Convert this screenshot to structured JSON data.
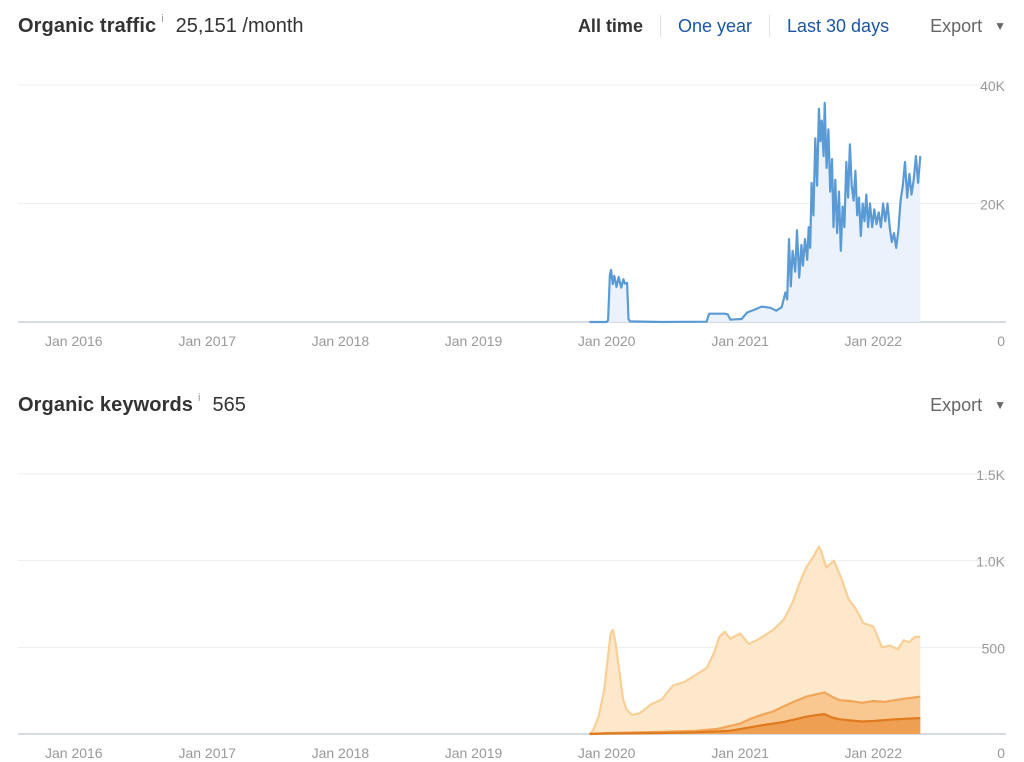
{
  "traffic": {
    "title": "Organic traffic",
    "info_icon": "i",
    "value": "25,151 /month",
    "ranges": [
      "All time",
      "One year",
      "Last 30 days"
    ],
    "export_label": "Export"
  },
  "keywords": {
    "title": "Organic keywords",
    "info_icon": "i",
    "value": "565",
    "export_label": "Export"
  },
  "chart_data": [
    {
      "type": "line",
      "xlabel": "",
      "ylabel": "",
      "x_ticks": [
        "Jan 2016",
        "Jan 2017",
        "Jan 2018",
        "Jan 2019",
        "Jan 2020",
        "Jan 2021",
        "Jan 2022"
      ],
      "y_ticks": [
        "0",
        "20K",
        "40K"
      ],
      "ylim": [
        0,
        40000
      ],
      "xlim": [
        "2015-08-01",
        "2022-12-31"
      ],
      "grid": true,
      "color": "#5b9bd5",
      "fill_color": "#e9f1fb",
      "series": [
        {
          "points": [
            [
              "2019-11-15",
              0
            ],
            [
              "2020-01-01",
              0
            ],
            [
              "2020-01-05",
              300
            ],
            [
              "2020-01-10",
              8000
            ],
            [
              "2020-01-13",
              8800
            ],
            [
              "2020-01-18",
              6400
            ],
            [
              "2020-01-22",
              7800
            ],
            [
              "2020-01-28",
              5900
            ],
            [
              "2020-02-03",
              7600
            ],
            [
              "2020-02-10",
              5800
            ],
            [
              "2020-02-16",
              7200
            ],
            [
              "2020-02-20",
              6500
            ],
            [
              "2020-02-26",
              6600
            ],
            [
              "2020-03-01",
              500
            ],
            [
              "2020-03-05",
              100
            ],
            [
              "2020-06-01",
              0
            ],
            [
              "2020-10-01",
              50
            ],
            [
              "2020-10-08",
              1400
            ],
            [
              "2020-11-20",
              1400
            ],
            [
              "2020-11-28",
              1300
            ],
            [
              "2020-12-05",
              400
            ],
            [
              "2020-12-20",
              450
            ],
            [
              "2021-01-05",
              500
            ],
            [
              "2021-01-20",
              1600
            ],
            [
              "2021-02-10",
              2100
            ],
            [
              "2021-03-01",
              2600
            ],
            [
              "2021-03-25",
              2400
            ],
            [
              "2021-04-10",
              1900
            ],
            [
              "2021-04-25",
              2500
            ],
            [
              "2021-05-05",
              5000
            ],
            [
              "2021-05-10",
              3800
            ],
            [
              "2021-05-15",
              14000
            ],
            [
              "2021-05-20",
              6000
            ],
            [
              "2021-05-25",
              12000
            ],
            [
              "2021-06-01",
              8500
            ],
            [
              "2021-06-06",
              15500
            ],
            [
              "2021-06-12",
              7500
            ],
            [
              "2021-06-18",
              13000
            ],
            [
              "2021-06-22",
              9500
            ],
            [
              "2021-06-28",
              14000
            ],
            [
              "2021-07-04",
              10500
            ],
            [
              "2021-07-08",
              16000
            ],
            [
              "2021-07-12",
              12500
            ],
            [
              "2021-07-16",
              23500
            ],
            [
              "2021-07-21",
              18000
            ],
            [
              "2021-07-26",
              31000
            ],
            [
              "2021-07-31",
              23000
            ],
            [
              "2021-08-05",
              36000
            ],
            [
              "2021-08-09",
              30500
            ],
            [
              "2021-08-13",
              34000
            ],
            [
              "2021-08-18",
              28000
            ],
            [
              "2021-08-21",
              37000
            ],
            [
              "2021-08-26",
              26000
            ],
            [
              "2021-08-31",
              32500
            ],
            [
              "2021-09-05",
              22000
            ],
            [
              "2021-09-10",
              27500
            ],
            [
              "2021-09-14",
              16000
            ],
            [
              "2021-09-19",
              24000
            ],
            [
              "2021-09-24",
              15000
            ],
            [
              "2021-09-29",
              22000
            ],
            [
              "2021-10-04",
              12000
            ],
            [
              "2021-10-09",
              19500
            ],
            [
              "2021-10-14",
              16000
            ],
            [
              "2021-10-19",
              27000
            ],
            [
              "2021-10-24",
              21000
            ],
            [
              "2021-10-29",
              30000
            ],
            [
              "2021-11-03",
              23000
            ],
            [
              "2021-11-08",
              20500
            ],
            [
              "2021-11-13",
              25500
            ],
            [
              "2021-11-18",
              18000
            ],
            [
              "2021-11-23",
              21000
            ],
            [
              "2021-11-28",
              14500
            ],
            [
              "2021-12-03",
              20000
            ],
            [
              "2021-12-08",
              17000
            ],
            [
              "2021-12-13",
              21500
            ],
            [
              "2021-12-18",
              16000
            ],
            [
              "2021-12-23",
              20000
            ],
            [
              "2021-12-29",
              16000
            ],
            [
              "2022-01-04",
              19000
            ],
            [
              "2022-01-10",
              16500
            ],
            [
              "2022-01-16",
              18500
            ],
            [
              "2022-01-22",
              16000
            ],
            [
              "2022-01-28",
              20000
            ],
            [
              "2022-02-03",
              17000
            ],
            [
              "2022-02-09",
              20000
            ],
            [
              "2022-02-15",
              16000
            ],
            [
              "2022-02-21",
              13500
            ],
            [
              "2022-02-27",
              15000
            ],
            [
              "2022-03-05",
              12500
            ],
            [
              "2022-03-11",
              15500
            ],
            [
              "2022-03-17",
              20500
            ],
            [
              "2022-03-23",
              23000
            ],
            [
              "2022-03-29",
              27000
            ],
            [
              "2022-04-04",
              21000
            ],
            [
              "2022-04-10",
              25000
            ],
            [
              "2022-04-16",
              21500
            ],
            [
              "2022-04-22",
              24000
            ],
            [
              "2022-04-28",
              28000
            ],
            [
              "2022-05-04",
              23500
            ],
            [
              "2022-05-10",
              28000
            ]
          ]
        }
      ]
    },
    {
      "type": "area",
      "xlabel": "",
      "ylabel": "",
      "x_ticks": [
        "Jan 2016",
        "Jan 2017",
        "Jan 2018",
        "Jan 2019",
        "Jan 2020",
        "Jan 2021",
        "Jan 2022"
      ],
      "y_ticks": [
        "0",
        "500",
        "1.0K",
        "1.5K"
      ],
      "ylim": [
        0,
        1500
      ],
      "xlim": [
        "2015-08-01",
        "2022-12-31"
      ],
      "grid": true,
      "stacked": false,
      "series": [
        {
          "color": "#f9cf95",
          "fill": "#fde6c6",
          "points": [
            [
              "2019-11-15",
              0
            ],
            [
              "2019-11-25",
              20
            ],
            [
              "2019-12-10",
              100
            ],
            [
              "2019-12-25",
              250
            ],
            [
              "2020-01-05",
              450
            ],
            [
              "2020-01-12",
              580
            ],
            [
              "2020-01-18",
              600
            ],
            [
              "2020-01-25",
              530
            ],
            [
              "2020-02-05",
              360
            ],
            [
              "2020-02-15",
              200
            ],
            [
              "2020-02-25",
              140
            ],
            [
              "2020-03-10",
              110
            ],
            [
              "2020-04-01",
              120
            ],
            [
              "2020-05-01",
              170
            ],
            [
              "2020-06-01",
              200
            ],
            [
              "2020-06-15",
              240
            ],
            [
              "2020-07-01",
              280
            ],
            [
              "2020-08-01",
              300
            ],
            [
              "2020-09-01",
              340
            ],
            [
              "2020-10-01",
              380
            ],
            [
              "2020-10-20",
              460
            ],
            [
              "2020-11-05",
              560
            ],
            [
              "2020-11-20",
              590
            ],
            [
              "2020-12-05",
              550
            ],
            [
              "2021-01-01",
              580
            ],
            [
              "2021-01-25",
              520
            ],
            [
              "2021-02-15",
              540
            ],
            [
              "2021-03-10",
              570
            ],
            [
              "2021-04-01",
              600
            ],
            [
              "2021-05-01",
              660
            ],
            [
              "2021-05-25",
              760
            ],
            [
              "2021-06-15",
              880
            ],
            [
              "2021-07-01",
              960
            ],
            [
              "2021-07-20",
              1020
            ],
            [
              "2021-08-05",
              1080
            ],
            [
              "2021-08-12",
              1050
            ],
            [
              "2021-08-25",
              960
            ],
            [
              "2021-09-15",
              1000
            ],
            [
              "2021-10-05",
              900
            ],
            [
              "2021-10-25",
              780
            ],
            [
              "2021-11-15",
              720
            ],
            [
              "2021-12-05",
              640
            ],
            [
              "2022-01-01",
              620
            ],
            [
              "2022-01-25",
              500
            ],
            [
              "2022-02-15",
              510
            ],
            [
              "2022-03-10",
              490
            ],
            [
              "2022-03-25",
              540
            ],
            [
              "2022-04-10",
              530
            ],
            [
              "2022-04-25",
              560
            ],
            [
              "2022-05-10",
              560
            ]
          ]
        },
        {
          "color": "#f3a557",
          "fill": "#f8c48a",
          "points": [
            [
              "2019-11-15",
              0
            ],
            [
              "2020-01-01",
              5
            ],
            [
              "2020-03-01",
              8
            ],
            [
              "2020-06-01",
              12
            ],
            [
              "2020-09-01",
              18
            ],
            [
              "2020-11-01",
              30
            ],
            [
              "2021-01-01",
              60
            ],
            [
              "2021-02-01",
              90
            ],
            [
              "2021-03-01",
              110
            ],
            [
              "2021-04-01",
              130
            ],
            [
              "2021-05-01",
              160
            ],
            [
              "2021-06-01",
              190
            ],
            [
              "2021-07-01",
              215
            ],
            [
              "2021-08-01",
              230
            ],
            [
              "2021-08-20",
              240
            ],
            [
              "2021-09-10",
              215
            ],
            [
              "2021-10-01",
              195
            ],
            [
              "2021-11-01",
              190
            ],
            [
              "2021-12-01",
              180
            ],
            [
              "2022-01-01",
              190
            ],
            [
              "2022-02-01",
              185
            ],
            [
              "2022-03-01",
              195
            ],
            [
              "2022-04-01",
              205
            ],
            [
              "2022-05-10",
              215
            ]
          ]
        },
        {
          "color": "#e07a1f",
          "fill": "#ec9a4a",
          "points": [
            [
              "2019-11-15",
              0
            ],
            [
              "2020-01-01",
              3
            ],
            [
              "2020-06-01",
              6
            ],
            [
              "2020-09-01",
              10
            ],
            [
              "2020-12-01",
              18
            ],
            [
              "2021-01-01",
              28
            ],
            [
              "2021-02-01",
              40
            ],
            [
              "2021-03-01",
              50
            ],
            [
              "2021-04-01",
              60
            ],
            [
              "2021-05-01",
              70
            ],
            [
              "2021-06-01",
              85
            ],
            [
              "2021-07-01",
              100
            ],
            [
              "2021-08-01",
              110
            ],
            [
              "2021-08-20",
              115
            ],
            [
              "2021-09-10",
              95
            ],
            [
              "2021-10-01",
              85
            ],
            [
              "2021-11-01",
              78
            ],
            [
              "2021-12-01",
              72
            ],
            [
              "2022-01-01",
              75
            ],
            [
              "2022-02-01",
              80
            ],
            [
              "2022-03-01",
              85
            ],
            [
              "2022-04-01",
              88
            ],
            [
              "2022-05-10",
              92
            ]
          ]
        }
      ]
    }
  ]
}
